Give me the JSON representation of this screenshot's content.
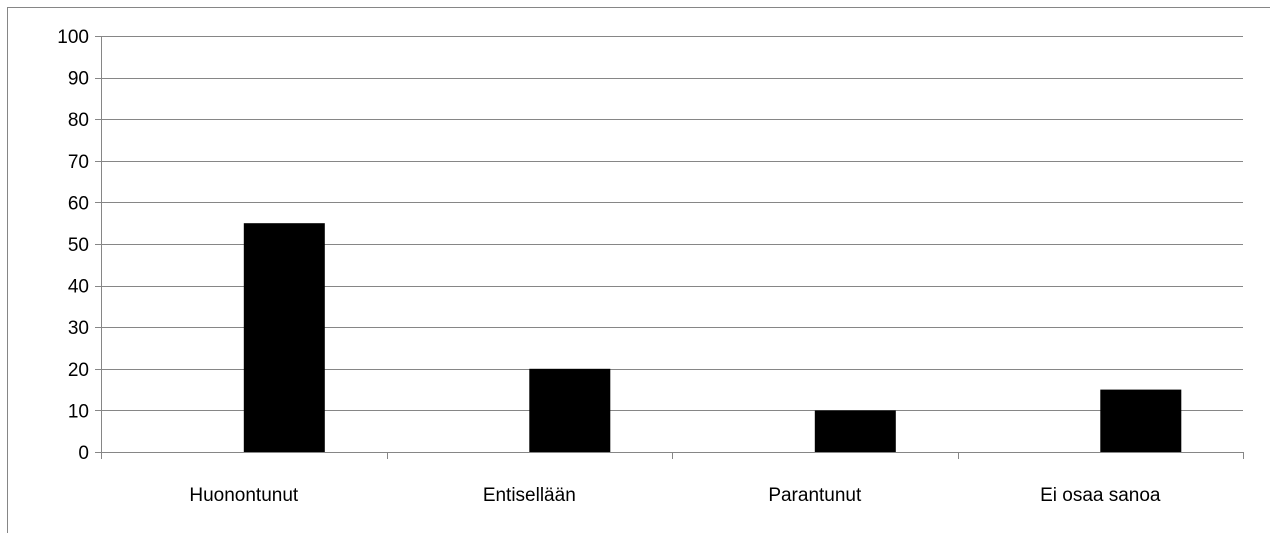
{
  "chart_data": {
    "type": "bar",
    "title": "",
    "xlabel": "",
    "ylabel": "",
    "categories": [
      "Huonontunut",
      "Entisellään",
      "Parantunut",
      "Ei osaa sanoa"
    ],
    "values": [
      55,
      20,
      10,
      15
    ],
    "ylim": [
      0,
      100
    ],
    "yticks": [
      "0",
      "10",
      "20",
      "30",
      "40",
      "50",
      "60",
      "70",
      "80",
      "90",
      "100"
    ],
    "grid": true,
    "legend": "none",
    "colors": {
      "bar": "#000000",
      "grid": "#868686",
      "axis": "#868686",
      "frame": "#868686",
      "text": "#000000"
    }
  }
}
